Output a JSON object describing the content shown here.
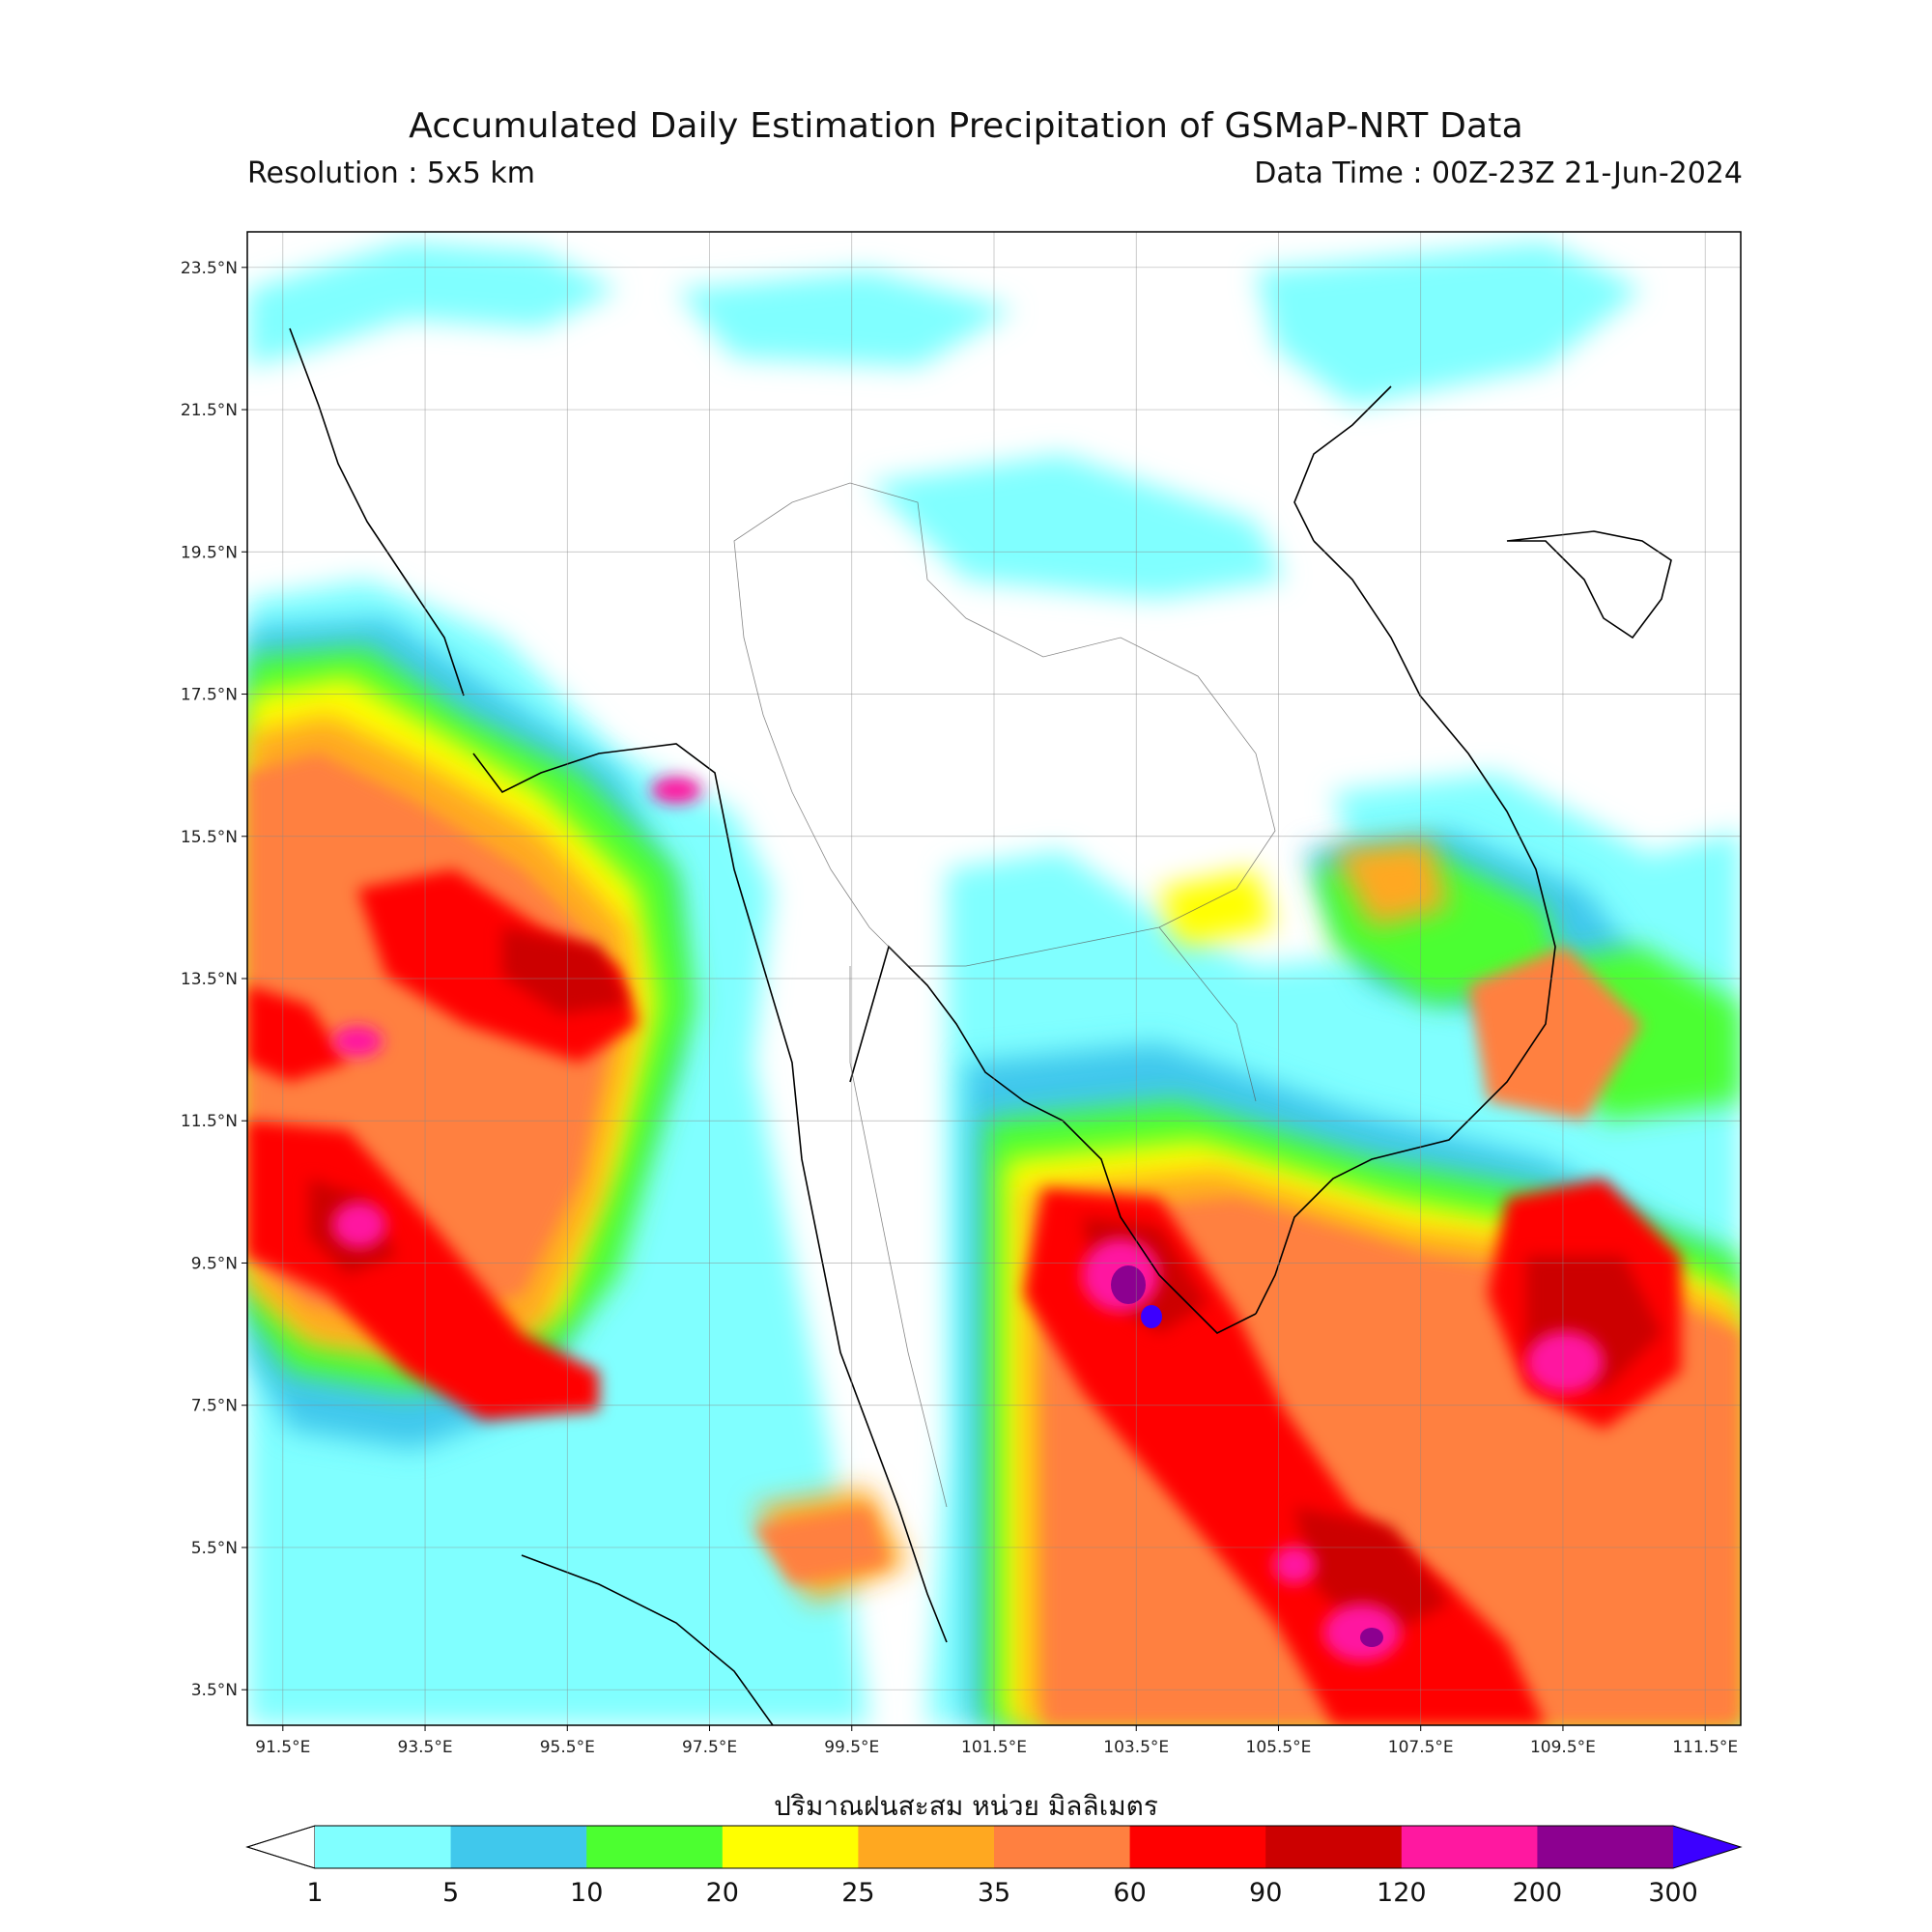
{
  "header": {
    "title": "Accumulated Daily Estimation Precipitation of GSMaP-NRT Data",
    "resolution": "Resolution : 5x5 km",
    "data_time": "Data Time : 00Z-23Z 21-Jun-2024"
  },
  "map": {
    "lat_ticks": [
      "23.5°N",
      "21.5°N",
      "19.5°N",
      "17.5°N",
      "15.5°N",
      "13.5°N",
      "11.5°N",
      "9.5°N",
      "7.5°N",
      "5.5°N",
      "3.5°N"
    ],
    "lon_ticks": [
      "91.5°E",
      "93.5°E",
      "95.5°E",
      "97.5°E",
      "99.5°E",
      "101.5°E",
      "103.5°E",
      "105.5°E",
      "107.5°E",
      "109.5°E",
      "111.5°E"
    ],
    "lat_values": [
      23.5,
      21.5,
      19.5,
      17.5,
      15.5,
      13.5,
      11.5,
      9.5,
      7.5,
      5.5,
      3.5
    ],
    "lon_values": [
      91.5,
      93.5,
      95.5,
      97.5,
      99.5,
      101.5,
      103.5,
      105.5,
      107.5,
      109.5,
      111.5
    ],
    "lon_range": [
      91.0,
      112.0
    ],
    "lat_range": [
      3.0,
      24.0
    ],
    "grid": true
  },
  "colorbar": {
    "title": "ปริมาณฝนสะสม หน่วย มิลลิเมตร",
    "labels": [
      "1",
      "5",
      "10",
      "20",
      "25",
      "35",
      "60",
      "90",
      "120",
      "200",
      "300"
    ],
    "colors": [
      "#ffffff",
      "#80ffff",
      "#40c8ec",
      "#4cff30",
      "#ffff00",
      "#ffa820",
      "#ff8040",
      "#ff0000",
      "#cc0000",
      "#ff18a0",
      "#8c0090",
      "#3c00ff"
    ]
  }
}
